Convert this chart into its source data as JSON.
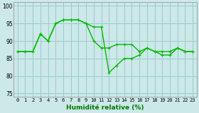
{
  "xlabel": "Humidité relative (%)",
  "x_values": [
    0,
    1,
    2,
    3,
    4,
    5,
    6,
    7,
    8,
    9,
    10,
    11,
    12,
    13,
    14,
    15,
    16,
    17,
    18,
    19,
    20,
    21,
    22,
    23
  ],
  "series1": [
    87,
    87,
    87,
    92,
    90,
    95,
    96,
    96,
    96,
    95,
    90,
    88,
    88,
    89,
    89,
    89,
    87,
    88,
    87,
    87,
    87,
    88,
    87,
    87
  ],
  "series2": [
    87,
    87,
    87,
    92,
    90,
    95,
    96,
    96,
    96,
    95,
    94,
    94,
    81,
    83,
    85,
    85,
    86,
    88,
    87,
    86,
    86,
    88,
    87,
    87
  ],
  "ylim": [
    74,
    101
  ],
  "yticks": [
    75,
    80,
    85,
    90,
    95,
    100
  ],
  "xlim": [
    -0.5,
    23.5
  ],
  "bg_color": "#cce8e8",
  "grid_color": "#99cccc",
  "line_color": "#00bb00",
  "markersize": 2.0,
  "linewidth": 1.0,
  "tick_fontsize": 5.0,
  "xlabel_fontsize": 6.5
}
